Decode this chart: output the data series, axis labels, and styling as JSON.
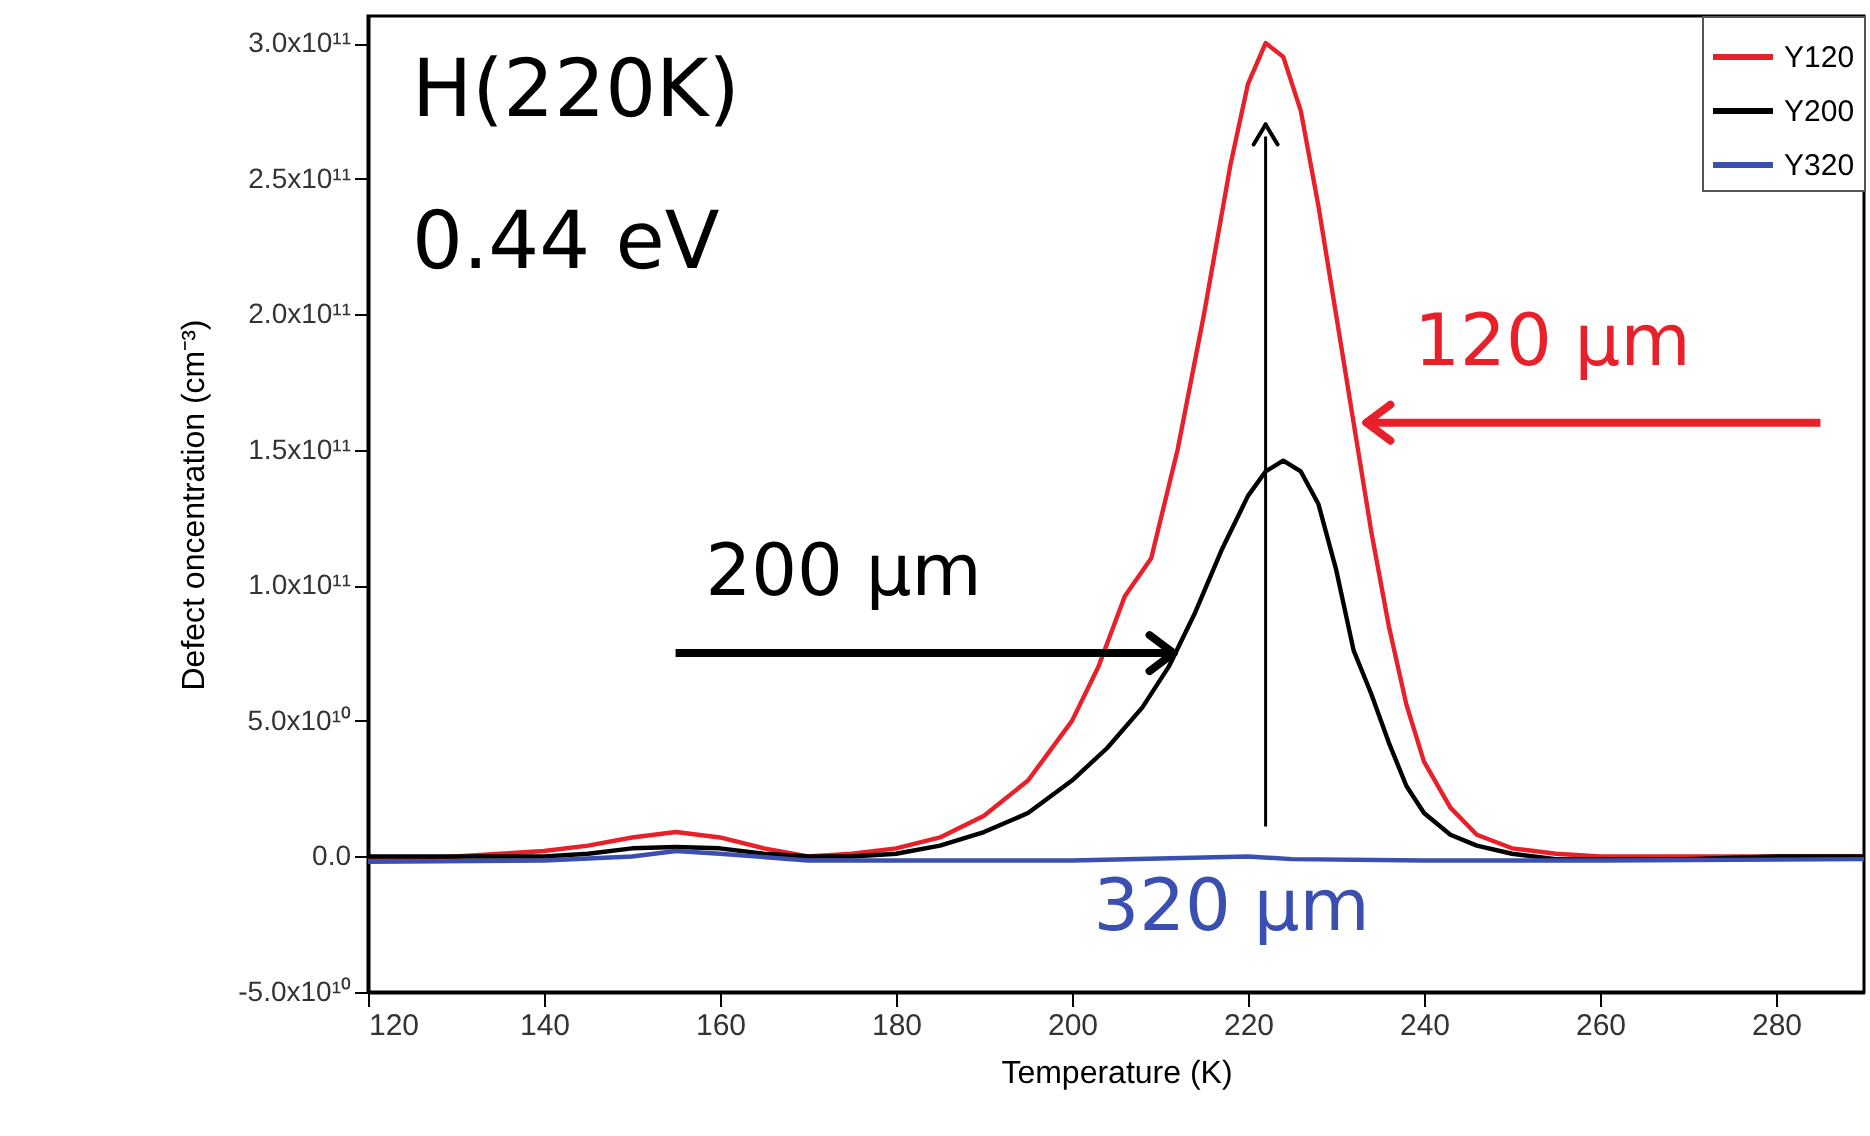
{
  "chart_data": {
    "type": "line",
    "xlabel": "Temperature (K)",
    "ylabel": "Defect oncentration (cm⁻³)",
    "xlim": [
      120,
      290
    ],
    "xticks": [
      120,
      140,
      160,
      180,
      200,
      220,
      240,
      260,
      280
    ],
    "ylim": [
      -50000000000.0,
      310000000000.0
    ],
    "yticks": [
      {
        "value": -50000000000.0,
        "label": "-5.0x10¹⁰"
      },
      {
        "value": 0,
        "label": "0.0"
      },
      {
        "value": 50000000000.0,
        "label": "5.0x10¹⁰"
      },
      {
        "value": 100000000000.0,
        "label": "1.0x10¹¹"
      },
      {
        "value": 150000000000.0,
        "label": "1.5x10¹¹"
      },
      {
        "value": 200000000000.0,
        "label": "2.0x10¹¹"
      },
      {
        "value": 250000000000.0,
        "label": "2.5x10¹¹"
      },
      {
        "value": 300000000000.0,
        "label": "3.0x10¹¹"
      }
    ],
    "grid": false,
    "legend": "top right",
    "marker": "none",
    "line_style": "solid",
    "annotations": [
      "H(220K)",
      "0.44 eV",
      {
        "text": "120 μm",
        "x": 233,
        "y": 160000000000.0
      },
      {
        "text": "200 μm",
        "x": 212,
        "y": 75000000000.0
      },
      {
        "text": "320 μm",
        "x": 222,
        "y": 0
      }
    ],
    "series": [
      {
        "name": "Y120",
        "color": "#e8202a",
        "x": [
          120,
          125,
          130,
          135,
          140,
          145,
          150,
          155,
          160,
          165,
          170,
          175,
          180,
          185,
          190,
          195,
          200,
          203,
          206,
          209,
          212,
          215,
          218,
          220,
          222,
          224,
          226,
          228,
          230,
          232,
          234,
          236,
          238,
          240,
          243,
          246,
          250,
          255,
          260,
          270,
          280,
          290
        ],
        "values": [
          -1000000000.0,
          -1000000000.0,
          0,
          1000000000.0,
          2000000000.0,
          4000000000.0,
          7000000000.0,
          9000000000.0,
          7000000000.0,
          3000000000.0,
          0,
          1000000000.0,
          3000000000.0,
          7000000000.0,
          15000000000.0,
          28000000000.0,
          50000000000.0,
          70000000000.0,
          96000000000.0,
          110000000000.0,
          150000000000.0,
          200000000000.0,
          255000000000.0,
          285000000000.0,
          300000000000.0,
          295000000000.0,
          275000000000.0,
          240000000000.0,
          200000000000.0,
          160000000000.0,
          120000000000.0,
          85000000000.0,
          56000000000.0,
          35000000000.0,
          18000000000.0,
          8000000000.0,
          3000000000.0,
          1000000000.0,
          0,
          0,
          0,
          0
        ]
      },
      {
        "name": "Y200",
        "color": "#000000",
        "x": [
          120,
          125,
          130,
          135,
          140,
          145,
          150,
          155,
          160,
          165,
          170,
          175,
          180,
          185,
          190,
          195,
          200,
          204,
          208,
          211,
          214,
          217,
          220,
          222,
          224,
          226,
          228,
          230,
          232,
          234,
          236,
          238,
          240,
          243,
          246,
          250,
          255,
          260,
          270,
          280,
          290
        ],
        "values": [
          0,
          0,
          0,
          0,
          0,
          1000000000.0,
          3000000000.0,
          3500000000.0,
          3000000000.0,
          1000000000.0,
          0,
          0,
          1000000000.0,
          4000000000.0,
          9000000000.0,
          16000000000.0,
          28000000000.0,
          40000000000.0,
          55000000000.0,
          70000000000.0,
          90000000000.0,
          113000000000.0,
          133000000000.0,
          142000000000.0,
          146000000000.0,
          142000000000.0,
          130000000000.0,
          106000000000.0,
          76000000000.0,
          60000000000.0,
          42000000000.0,
          26000000000.0,
          16000000000.0,
          8000000000.0,
          4000000000.0,
          1000000000.0,
          -1000000000.0,
          -1000000000.0,
          -1000000000.0,
          0,
          0
        ]
      },
      {
        "name": "Y320",
        "color": "#3a4fb0",
        "x": [
          120,
          140,
          150,
          155,
          160,
          170,
          200,
          220,
          225,
          240,
          260,
          290
        ],
        "values": [
          -2000000000.0,
          -1500000000.0,
          0,
          2000000000.0,
          1000000000.0,
          -1500000000.0,
          -1500000000.0,
          0,
          -1000000000.0,
          -1500000000.0,
          -1500000000.0,
          -1000000000.0
        ]
      }
    ]
  }
}
